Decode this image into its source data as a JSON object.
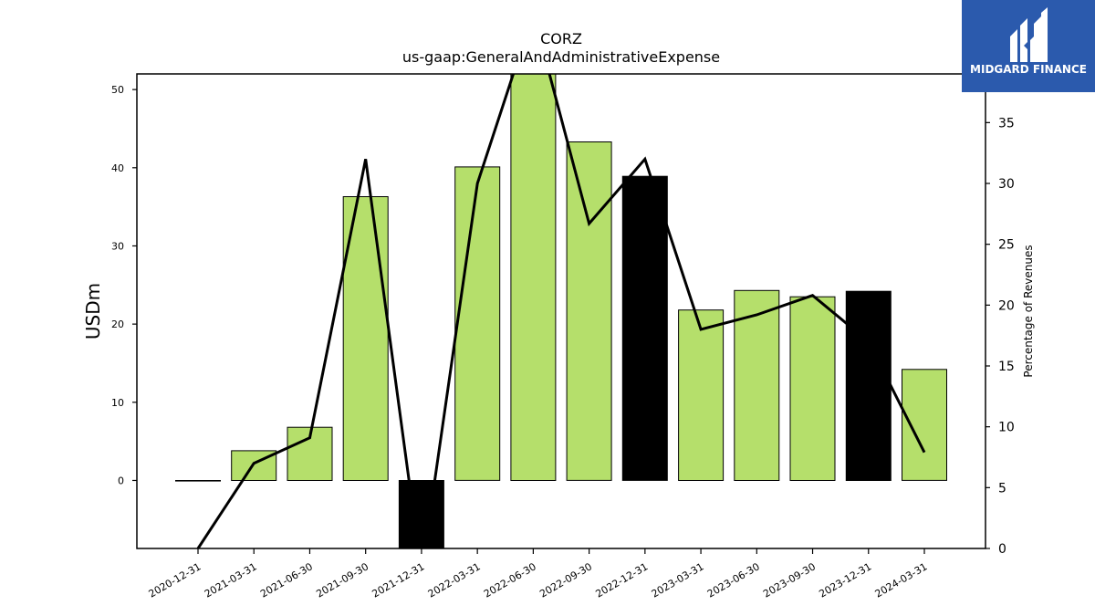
{
  "chart_data": {
    "type": "bar",
    "title": "CORZ",
    "subtitle": "us-gaap:GeneralAndAdministrativeExpense",
    "categories": [
      "2020-12-31",
      "2021-03-31",
      "2021-06-30",
      "2021-09-30",
      "2021-12-31",
      "2022-03-31",
      "2022-06-30",
      "2022-09-30",
      "2022-12-31",
      "2023-03-31",
      "2023-06-30",
      "2023-09-30",
      "2023-12-31",
      "2024-03-31"
    ],
    "series": [
      {
        "axis": "left",
        "type": "bar",
        "values": [
          0,
          3.8,
          6.8,
          36.3,
          -9.5,
          40.1,
          52.5,
          43.3,
          38.9,
          21.8,
          24.3,
          23.5,
          24.2,
          14.2
        ],
        "colors": [
          "#b5df6b",
          "#b5df6b",
          "#b5df6b",
          "#b5df6b",
          "#000000",
          "#b5df6b",
          "#b5df6b",
          "#b5df6b",
          "#000000",
          "#b5df6b",
          "#b5df6b",
          "#b5df6b",
          "#000000",
          "#b5df6b"
        ]
      },
      {
        "axis": "right",
        "type": "line",
        "color": "#000000",
        "values": [
          0,
          7.0,
          9.1,
          32.0,
          -2.0,
          30.0,
          44.0,
          26.7,
          32.0,
          18.0,
          19.2,
          20.8,
          17.0,
          7.9
        ]
      }
    ],
    "ylabel": "USDm",
    "ylim": [
      -8.7,
      52
    ],
    "yticks": [
      0,
      10,
      20,
      30,
      40,
      50
    ],
    "y2label": "Percentage of Revenues",
    "y2lim": [
      0,
      39
    ],
    "y2ticks": [
      0,
      5,
      10,
      15,
      20,
      25,
      30,
      35
    ],
    "grid": false,
    "legend": "none"
  },
  "logo": {
    "text": "MIDGARD FINANCE",
    "bg_color": "#2b5aad"
  }
}
